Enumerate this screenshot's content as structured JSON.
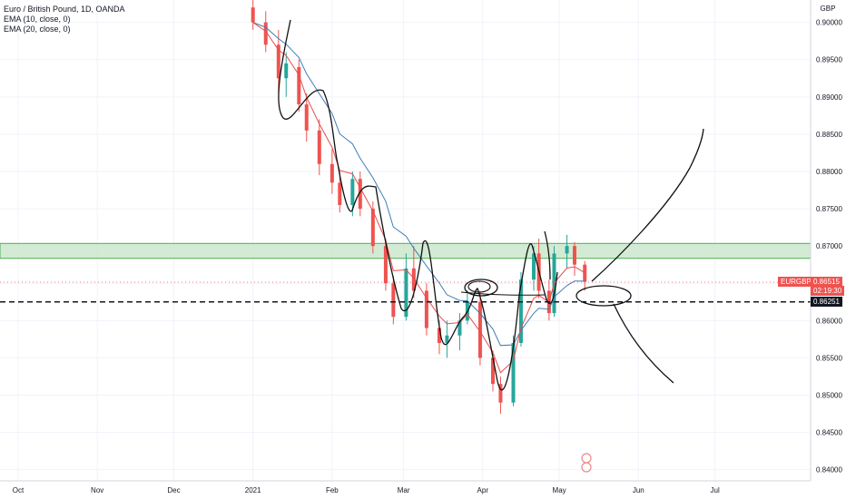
{
  "legend": {
    "title": "Euro / British Pound, 1D, OANDA",
    "ema10": "EMA (10, close, 0)",
    "ema20": "EMA (20, close, 0)"
  },
  "price_axis": {
    "currency": "GBP",
    "ticks": [
      "0.90000",
      "0.89500",
      "0.89000",
      "0.88500",
      "0.88000",
      "0.87500",
      "0.87000",
      "0.86500",
      "0.86000",
      "0.85500",
      "0.85000",
      "0.84500",
      "0.84000"
    ]
  },
  "time_axis": {
    "labels": [
      "Oct",
      "Nov",
      "Dec",
      "2021",
      "Feb",
      "Mar",
      "Apr",
      "May",
      "Jun",
      "Jul"
    ]
  },
  "tags": {
    "symbol": "EURGBP",
    "last_price": "0.86515",
    "countdown": "02:19:30",
    "level_price": "0.86251"
  },
  "colors": {
    "up": "#26a69a",
    "down": "#ef5350",
    "ema10": "#e84c4c",
    "ema20": "#3f7cb8",
    "zone": "#4caf50",
    "zone_fill": "#c8e6c9"
  },
  "chart_data": {
    "type": "candlestick",
    "title": "Euro / British Pound, 1D, OANDA",
    "symbol": "EURGBP",
    "timeframe": "1D",
    "currency": "GBP",
    "ylim": [
      0.8385,
      0.903
    ],
    "x_range_dates": [
      "2020-10-01",
      "2021-07-31"
    ],
    "x_tick_labels": [
      "Oct",
      "Nov",
      "Dec",
      "2021",
      "Feb",
      "Mar",
      "Apr",
      "May",
      "Jun",
      "Jul"
    ],
    "last_price": 0.86515,
    "horizontal_level": 0.86251,
    "resistance_zone": [
      0.86835,
      0.87035
    ],
    "ohlc": [
      [
        "2021-01-01",
        0.902,
        0.903,
        0.899,
        0.9
      ],
      [
        "2021-01-06",
        0.9,
        0.9015,
        0.896,
        0.897
      ],
      [
        "2021-01-11",
        0.897,
        0.899,
        0.8905,
        0.8925
      ],
      [
        "2021-01-14",
        0.8925,
        0.896,
        0.89,
        0.8945
      ],
      [
        "2021-01-19",
        0.894,
        0.895,
        0.888,
        0.889
      ],
      [
        "2021-01-22",
        0.889,
        0.8905,
        0.884,
        0.8855
      ],
      [
        "2021-01-27",
        0.8855,
        0.887,
        0.8795,
        0.881
      ],
      [
        "2021-02-01",
        0.881,
        0.883,
        0.877,
        0.8785
      ],
      [
        "2021-02-04",
        0.8785,
        0.88,
        0.8745,
        0.8755
      ],
      [
        "2021-02-09",
        0.8755,
        0.88,
        0.874,
        0.879
      ],
      [
        "2021-02-12",
        0.879,
        0.88,
        0.874,
        0.875
      ],
      [
        "2021-02-17",
        0.875,
        0.876,
        0.869,
        0.87
      ],
      [
        "2021-02-22",
        0.87,
        0.871,
        0.864,
        0.865
      ],
      [
        "2021-02-25",
        0.865,
        0.866,
        0.8595,
        0.8605
      ],
      [
        "2021-03-02",
        0.8605,
        0.869,
        0.86,
        0.867
      ],
      [
        "2021-03-05",
        0.867,
        0.87,
        0.863,
        0.864
      ],
      [
        "2021-03-10",
        0.864,
        0.865,
        0.858,
        0.859
      ],
      [
        "2021-03-15",
        0.859,
        0.86,
        0.8555,
        0.857
      ],
      [
        "2021-03-18",
        0.857,
        0.86,
        0.855,
        0.858
      ],
      [
        "2021-03-23",
        0.858,
        0.861,
        0.856,
        0.86
      ],
      [
        "2021-03-26",
        0.86,
        0.864,
        0.8595,
        0.8625
      ],
      [
        "2021-03-31",
        0.8625,
        0.864,
        0.854,
        0.855
      ],
      [
        "2021-04-05",
        0.855,
        0.856,
        0.8505,
        0.8515
      ],
      [
        "2021-04-08",
        0.8515,
        0.8525,
        0.8475,
        0.849
      ],
      [
        "2021-04-13",
        0.849,
        0.858,
        0.8485,
        0.857
      ],
      [
        "2021-04-16",
        0.857,
        0.8665,
        0.8565,
        0.8655
      ],
      [
        "2021-04-21",
        0.8655,
        0.87,
        0.864,
        0.869
      ],
      [
        "2021-04-23",
        0.869,
        0.871,
        0.863,
        0.864
      ],
      [
        "2021-04-27",
        0.864,
        0.8655,
        0.86,
        0.861
      ],
      [
        "2021-04-29",
        0.861,
        0.87,
        0.8605,
        0.869
      ],
      [
        "2021-05-04",
        0.869,
        0.8715,
        0.867,
        0.87
      ],
      [
        "2021-05-07",
        0.87,
        0.8705,
        0.866,
        0.8675
      ],
      [
        "2021-05-11",
        0.8675,
        0.868,
        0.864,
        0.8652
      ]
    ],
    "series": [
      {
        "name": "EMA (10, close, 0)"
      },
      {
        "name": "EMA (20, close, 0)"
      }
    ]
  }
}
